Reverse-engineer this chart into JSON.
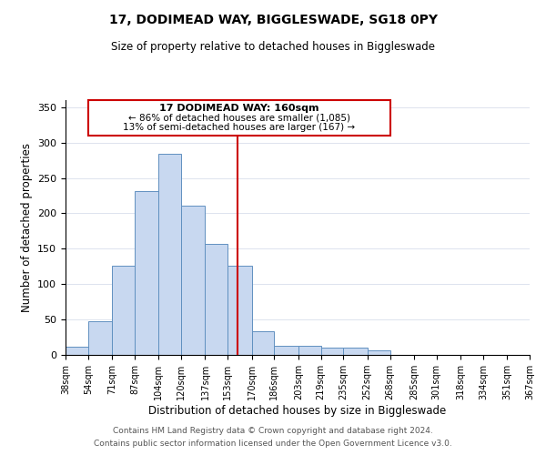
{
  "title": "17, DODIMEAD WAY, BIGGLESWADE, SG18 0PY",
  "subtitle": "Size of property relative to detached houses in Biggleswade",
  "xlabel": "Distribution of detached houses by size in Biggleswade",
  "ylabel": "Number of detached properties",
  "bar_color": "#c8d8f0",
  "bar_edge_color": "#6090c0",
  "annotation_line_color": "#cc0000",
  "annotation_box_color": "#cc0000",
  "annotation_text": "17 DODIMEAD WAY: 160sqm",
  "annotation_line1": "← 86% of detached houses are smaller (1,085)",
  "annotation_line2": "13% of semi-detached houses are larger (167) →",
  "property_size": 160,
  "bin_edges": [
    38,
    54,
    71,
    87,
    104,
    120,
    137,
    153,
    170,
    186,
    203,
    219,
    235,
    252,
    268,
    285,
    301,
    318,
    334,
    351,
    367
  ],
  "bin_counts": [
    11,
    47,
    126,
    231,
    284,
    211,
    157,
    126,
    33,
    13,
    13,
    10,
    10,
    6,
    0,
    0,
    0,
    0,
    0,
    0
  ],
  "footer_line1": "Contains HM Land Registry data © Crown copyright and database right 2024.",
  "footer_line2": "Contains public sector information licensed under the Open Government Licence v3.0.",
  "ylim": [
    0,
    360
  ],
  "yticks": [
    0,
    50,
    100,
    150,
    200,
    250,
    300,
    350
  ],
  "background_color": "#ffffff"
}
